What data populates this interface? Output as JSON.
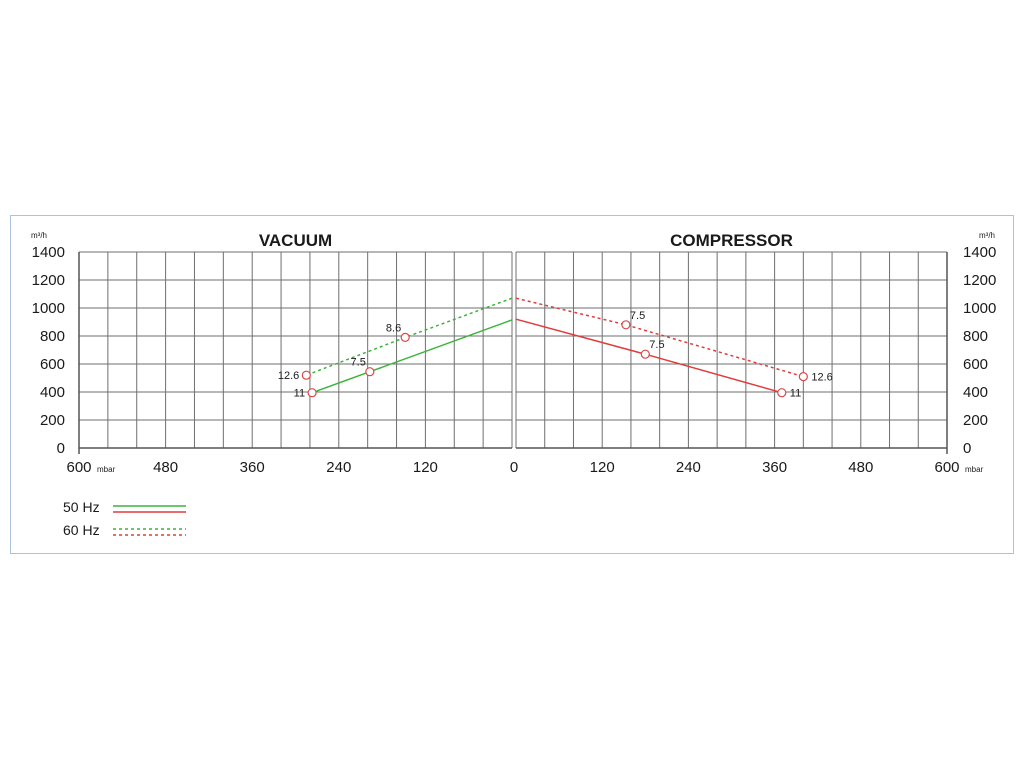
{
  "chart_data": [
    {
      "type": "line",
      "title": "VACUUM",
      "x_unit": "mbar",
      "y_unit": "m³/h",
      "xlim": [
        600,
        0
      ],
      "ylim": [
        0,
        1400
      ],
      "xticks": [
        "600",
        "480",
        "360",
        "240",
        "120",
        "0"
      ],
      "yticks": [
        "1400",
        "1200",
        "1000",
        "800",
        "600",
        "400",
        "200",
        "0"
      ],
      "grid": true,
      "series": [
        {
          "name": "50 Hz",
          "style": "solid",
          "color": "#3cb43c",
          "x": [
            0,
            197,
            277
          ],
          "y": [
            915,
            545,
            395
          ]
        },
        {
          "name": "60 Hz",
          "style": "dashed",
          "color": "#3cb43c",
          "x": [
            0,
            148,
            285
          ],
          "y": [
            1070,
            790,
            520
          ]
        }
      ],
      "points": [
        {
          "label": "12.6",
          "x": 285,
          "y": 520,
          "label_side": "left"
        },
        {
          "label": "11",
          "x": 277,
          "y": 395,
          "label_side": "left"
        },
        {
          "label": "7.5",
          "x": 197,
          "y": 545,
          "label_side": "upper-left"
        },
        {
          "label": "8.6",
          "x": 148,
          "y": 790,
          "label_side": "upper-left"
        }
      ]
    },
    {
      "type": "line",
      "title": "COMPRESSOR",
      "x_unit": "mbar",
      "y_unit": "m³/h",
      "xlim": [
        0,
        600
      ],
      "ylim": [
        0,
        1400
      ],
      "xticks": [
        "0",
        "120",
        "240",
        "360",
        "480",
        "600"
      ],
      "yticks": [
        "1400",
        "1200",
        "1000",
        "800",
        "600",
        "400",
        "200",
        "0"
      ],
      "grid": true,
      "series": [
        {
          "name": "50 Hz",
          "style": "solid",
          "color": "#e03c3c",
          "x": [
            0,
            180,
            370
          ],
          "y": [
            920,
            670,
            395
          ]
        },
        {
          "name": "60 Hz",
          "style": "dashed",
          "color": "#e03c3c",
          "x": [
            0,
            153,
            400
          ],
          "y": [
            1070,
            880,
            510
          ]
        }
      ],
      "points": [
        {
          "label": "7.5",
          "x": 153,
          "y": 880,
          "label_side": "upper-right"
        },
        {
          "label": "7.5",
          "x": 180,
          "y": 670,
          "label_side": "upper-right"
        },
        {
          "label": "12.6",
          "x": 400,
          "y": 510,
          "label_side": "right"
        },
        {
          "label": "11",
          "x": 370,
          "y": 395,
          "label_side": "right"
        }
      ]
    }
  ],
  "legend": [
    {
      "label": "50 Hz",
      "style": "solid",
      "colors": [
        "#3cb43c",
        "#e03c3c"
      ]
    },
    {
      "label": "60 Hz",
      "style": "dashed",
      "colors": [
        "#3cb43c",
        "#e03c3c"
      ]
    }
  ]
}
